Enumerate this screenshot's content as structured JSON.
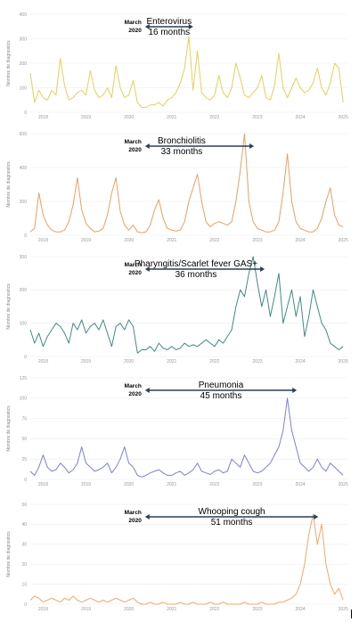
{
  "figure": {
    "march_label": "March",
    "year_label": "2020"
  },
  "chart_data": [
    {
      "type": "line",
      "name": "Enterovirus",
      "color": "#e6cf5a",
      "ylabel": "Nombre de diagnostics",
      "yticks": [
        0,
        100,
        200,
        300,
        400
      ],
      "ylim": [
        0,
        400
      ],
      "xlim": [
        2017.7,
        2025.1
      ],
      "xticks": [
        "2018",
        "2019",
        "2020",
        "2021",
        "2022",
        "2023",
        "2024",
        "2025"
      ],
      "annotation": {
        "title": "Enterovirus",
        "duration": "16 months",
        "arrow_from": 2020.17,
        "arrow_to": 2021.5
      },
      "x": [
        2017.7,
        2017.8,
        2017.9,
        2018.0,
        2018.1,
        2018.2,
        2018.3,
        2018.4,
        2018.5,
        2018.6,
        2018.7,
        2018.8,
        2018.9,
        2019.0,
        2019.1,
        2019.2,
        2019.3,
        2019.4,
        2019.5,
        2019.6,
        2019.7,
        2019.8,
        2019.9,
        2020.0,
        2020.1,
        2020.2,
        2020.3,
        2020.4,
        2020.5,
        2020.6,
        2020.7,
        2020.8,
        2020.9,
        2021.0,
        2021.1,
        2021.2,
        2021.3,
        2021.4,
        2021.5,
        2021.6,
        2021.7,
        2021.8,
        2021.9,
        2022.0,
        2022.1,
        2022.2,
        2022.3,
        2022.4,
        2022.5,
        2022.6,
        2022.7,
        2022.8,
        2022.9,
        2023.0,
        2023.1,
        2023.2,
        2023.3,
        2023.4,
        2023.5,
        2023.6,
        2023.7,
        2023.8,
        2023.9,
        2024.0,
        2024.1,
        2024.2,
        2024.3,
        2024.4,
        2024.5,
        2024.6,
        2024.7,
        2024.8,
        2024.9,
        2025.0
      ],
      "values": [
        160,
        40,
        90,
        60,
        50,
        90,
        70,
        220,
        110,
        50,
        60,
        80,
        90,
        70,
        170,
        90,
        60,
        70,
        100,
        60,
        190,
        100,
        60,
        70,
        130,
        40,
        20,
        20,
        30,
        30,
        40,
        25,
        50,
        60,
        80,
        120,
        180,
        310,
        90,
        250,
        80,
        60,
        50,
        70,
        150,
        80,
        60,
        100,
        200,
        140,
        70,
        60,
        80,
        100,
        150,
        60,
        50,
        110,
        240,
        100,
        60,
        100,
        140,
        100,
        80,
        90,
        120,
        180,
        100,
        70,
        120,
        200,
        180,
        40
      ]
    },
    {
      "type": "line",
      "name": "Bronchiolitis",
      "color": "#e8a062",
      "ylabel": "Nombre de diagnostics",
      "yticks": [
        0,
        200,
        400,
        600
      ],
      "ylim": [
        0,
        600
      ],
      "xlim": [
        2017.7,
        2025.1
      ],
      "xticks": [
        "2018",
        "2019",
        "2020",
        "2021",
        "2022",
        "2023",
        "2024",
        "2025"
      ],
      "annotation": {
        "title": "Bronchiolitis",
        "duration": "33 months",
        "arrow_from": 2020.17,
        "arrow_to": 2022.92
      },
      "x": [
        2017.7,
        2017.8,
        2017.9,
        2018.0,
        2018.1,
        2018.2,
        2018.3,
        2018.4,
        2018.5,
        2018.6,
        2018.7,
        2018.8,
        2018.9,
        2019.0,
        2019.1,
        2019.2,
        2019.3,
        2019.4,
        2019.5,
        2019.6,
        2019.7,
        2019.8,
        2019.9,
        2020.0,
        2020.1,
        2020.2,
        2020.3,
        2020.4,
        2020.5,
        2020.6,
        2020.7,
        2020.8,
        2020.9,
        2021.0,
        2021.1,
        2021.2,
        2021.3,
        2021.4,
        2021.5,
        2021.6,
        2021.7,
        2021.8,
        2021.9,
        2022.0,
        2022.1,
        2022.2,
        2022.3,
        2022.4,
        2022.5,
        2022.6,
        2022.7,
        2022.8,
        2022.9,
        2023.0,
        2023.1,
        2023.2,
        2023.3,
        2023.4,
        2023.5,
        2023.6,
        2023.7,
        2023.8,
        2023.9,
        2024.0,
        2024.1,
        2024.2,
        2024.3,
        2024.4,
        2024.5,
        2024.6,
        2024.7,
        2024.8,
        2024.9,
        2025.0
      ],
      "values": [
        20,
        40,
        250,
        120,
        60,
        30,
        20,
        20,
        30,
        80,
        180,
        340,
        150,
        70,
        40,
        20,
        25,
        40,
        120,
        250,
        340,
        140,
        60,
        30,
        60,
        20,
        15,
        20,
        60,
        150,
        210,
        100,
        40,
        30,
        25,
        30,
        80,
        200,
        280,
        360,
        200,
        80,
        50,
        70,
        80,
        70,
        60,
        80,
        200,
        380,
        600,
        200,
        80,
        40,
        30,
        20,
        20,
        30,
        80,
        250,
        480,
        200,
        80,
        40,
        30,
        20,
        20,
        40,
        100,
        200,
        280,
        120,
        60,
        50
      ]
    },
    {
      "type": "line",
      "name": "Pharyngitis/Scarlet fever GAS+",
      "color": "#3f8a85",
      "ylabel": "Nombre de diagnostics",
      "yticks": [
        0,
        100,
        200,
        300
      ],
      "ylim": [
        0,
        300
      ],
      "xlim": [
        2017.7,
        2025.1
      ],
      "xticks": [
        "2018",
        "2019",
        "2020",
        "2021",
        "2022",
        "2023",
        "2024",
        "2025"
      ],
      "annotation": {
        "title": "Pharyngitis/Scarlet fever GAS+",
        "duration": "36 months",
        "arrow_from": 2020.17,
        "arrow_to": 2023.17
      },
      "x": [
        2017.7,
        2017.8,
        2017.9,
        2018.0,
        2018.1,
        2018.2,
        2018.3,
        2018.4,
        2018.5,
        2018.6,
        2018.7,
        2018.8,
        2018.9,
        2019.0,
        2019.1,
        2019.2,
        2019.3,
        2019.4,
        2019.5,
        2019.6,
        2019.7,
        2019.8,
        2019.9,
        2020.0,
        2020.1,
        2020.2,
        2020.3,
        2020.4,
        2020.5,
        2020.6,
        2020.7,
        2020.8,
        2020.9,
        2021.0,
        2021.1,
        2021.2,
        2021.3,
        2021.4,
        2021.5,
        2021.6,
        2021.7,
        2021.8,
        2021.9,
        2022.0,
        2022.1,
        2022.2,
        2022.3,
        2022.4,
        2022.5,
        2022.6,
        2022.7,
        2022.8,
        2022.9,
        2023.0,
        2023.1,
        2023.2,
        2023.3,
        2023.4,
        2023.5,
        2023.6,
        2023.7,
        2023.8,
        2023.9,
        2024.0,
        2024.1,
        2024.2,
        2024.3,
        2024.4,
        2024.5,
        2024.6,
        2024.7,
        2024.8,
        2024.9,
        2025.0
      ],
      "values": [
        80,
        40,
        70,
        30,
        60,
        80,
        100,
        90,
        70,
        40,
        100,
        80,
        110,
        70,
        90,
        100,
        80,
        110,
        70,
        30,
        90,
        100,
        80,
        110,
        90,
        10,
        20,
        20,
        30,
        15,
        40,
        25,
        20,
        30,
        20,
        25,
        40,
        30,
        35,
        30,
        40,
        50,
        40,
        30,
        50,
        40,
        60,
        80,
        150,
        200,
        180,
        250,
        300,
        220,
        150,
        200,
        120,
        180,
        250,
        100,
        150,
        200,
        120,
        180,
        60,
        120,
        200,
        150,
        100,
        80,
        40,
        30,
        20,
        30
      ]
    },
    {
      "type": "line",
      "name": "Pneumonia",
      "color": "#7b7fd6",
      "ylabel": "Nombre de diagnostics",
      "yticks": [
        0,
        25,
        50,
        75,
        100,
        125
      ],
      "ylim": [
        0,
        125
      ],
      "xlim": [
        2017.7,
        2025.1
      ],
      "xticks": [
        "2018",
        "2019",
        "2020",
        "2021",
        "2022",
        "2023",
        "2024",
        "2025"
      ],
      "annotation": {
        "title": "Pneumonia",
        "duration": "45 months",
        "arrow_from": 2020.17,
        "arrow_to": 2023.92
      },
      "x": [
        2017.7,
        2017.8,
        2017.9,
        2018.0,
        2018.1,
        2018.2,
        2018.3,
        2018.4,
        2018.5,
        2018.6,
        2018.7,
        2018.8,
        2018.9,
        2019.0,
        2019.1,
        2019.2,
        2019.3,
        2019.4,
        2019.5,
        2019.6,
        2019.7,
        2019.8,
        2019.9,
        2020.0,
        2020.1,
        2020.2,
        2020.3,
        2020.4,
        2020.5,
        2020.6,
        2020.7,
        2020.8,
        2020.9,
        2021.0,
        2021.1,
        2021.2,
        2021.3,
        2021.4,
        2021.5,
        2021.6,
        2021.7,
        2021.8,
        2021.9,
        2022.0,
        2022.1,
        2022.2,
        2022.3,
        2022.4,
        2022.5,
        2022.6,
        2022.7,
        2022.8,
        2022.9,
        2023.0,
        2023.1,
        2023.2,
        2023.3,
        2023.4,
        2023.5,
        2023.6,
        2023.7,
        2023.8,
        2023.9,
        2024.0,
        2024.1,
        2024.2,
        2024.3,
        2024.4,
        2024.5,
        2024.6,
        2024.7,
        2024.8,
        2024.9,
        2025.0
      ],
      "values": [
        10,
        5,
        15,
        30,
        15,
        10,
        12,
        20,
        15,
        8,
        12,
        20,
        40,
        20,
        15,
        10,
        12,
        15,
        20,
        8,
        15,
        25,
        40,
        20,
        15,
        5,
        3,
        5,
        8,
        10,
        12,
        8,
        5,
        5,
        8,
        10,
        5,
        8,
        12,
        20,
        10,
        8,
        6,
        10,
        12,
        8,
        10,
        25,
        20,
        15,
        30,
        20,
        10,
        8,
        10,
        15,
        20,
        30,
        40,
        60,
        100,
        60,
        40,
        20,
        15,
        10,
        15,
        25,
        15,
        10,
        20,
        15,
        10,
        5
      ]
    },
    {
      "type": "line",
      "name": "Whooping cough",
      "color": "#efa86a",
      "ylabel": "Nombre de diagnostics",
      "yticks": [
        0,
        10,
        20,
        30,
        40,
        50
      ],
      "ylim": [
        0,
        50
      ],
      "xlim": [
        2017.7,
        2025.1
      ],
      "xticks": [
        "2018",
        "2019",
        "2020",
        "2021",
        "2022",
        "2023",
        "2024",
        "2025"
      ],
      "annotation": {
        "title": "Whooping cough",
        "duration": "51 months",
        "arrow_from": 2020.17,
        "arrow_to": 2024.42
      },
      "x": [
        2017.7,
        2017.8,
        2017.9,
        2018.0,
        2018.1,
        2018.2,
        2018.3,
        2018.4,
        2018.5,
        2018.6,
        2018.7,
        2018.8,
        2018.9,
        2019.0,
        2019.1,
        2019.2,
        2019.3,
        2019.4,
        2019.5,
        2019.6,
        2019.7,
        2019.8,
        2019.9,
        2020.0,
        2020.1,
        2020.2,
        2020.3,
        2020.4,
        2020.5,
        2020.6,
        2020.7,
        2020.8,
        2020.9,
        2021.0,
        2021.1,
        2021.2,
        2021.3,
        2021.4,
        2021.5,
        2021.6,
        2021.7,
        2021.8,
        2021.9,
        2022.0,
        2022.1,
        2022.2,
        2022.3,
        2022.4,
        2022.5,
        2022.6,
        2022.7,
        2022.8,
        2022.9,
        2023.0,
        2023.1,
        2023.2,
        2023.3,
        2023.4,
        2023.5,
        2023.6,
        2023.7,
        2023.8,
        2023.9,
        2024.0,
        2024.1,
        2024.2,
        2024.3,
        2024.4,
        2024.5,
        2024.6,
        2024.7,
        2024.8,
        2024.9,
        2025.0
      ],
      "values": [
        2,
        4,
        3,
        1,
        2,
        3,
        2,
        1,
        3,
        2,
        4,
        2,
        1,
        2,
        3,
        2,
        1,
        2,
        1,
        2,
        3,
        2,
        1,
        2,
        3,
        1,
        0,
        0,
        1,
        0,
        0,
        1,
        0,
        0,
        0,
        1,
        0,
        0,
        1,
        0,
        0,
        0,
        1,
        0,
        0,
        1,
        0,
        0,
        0,
        0,
        1,
        0,
        0,
        0,
        1,
        0,
        0,
        0,
        1,
        1,
        2,
        3,
        5,
        10,
        20,
        35,
        45,
        30,
        40,
        20,
        10,
        5,
        8,
        2
      ]
    }
  ]
}
